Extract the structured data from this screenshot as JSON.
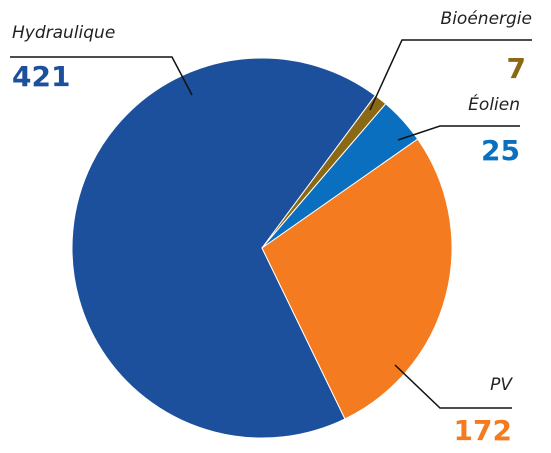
{
  "chart_data": {
    "type": "pie",
    "categories": [
      "Hydraulique",
      "Bioénergie",
      "Éolien",
      "PV"
    ],
    "values": [
      421,
      7,
      25,
      172
    ],
    "colors": [
      "#1c4f9c",
      "#8b6914",
      "#0a6fbf",
      "#f47b20"
    ]
  }
}
